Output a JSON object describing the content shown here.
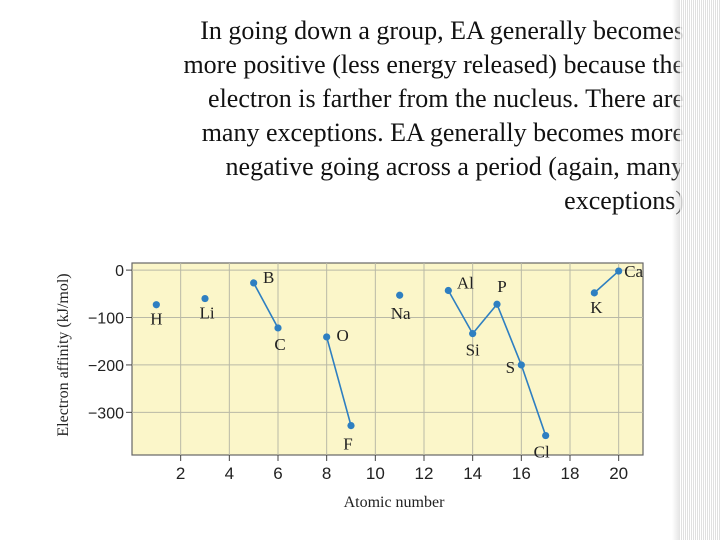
{
  "slide": {
    "text_lines": [
      "In going down a group, EA generally becomes",
      "more positive (less energy released) because the",
      "electron is farther from the nucleus.  There are",
      "many exceptions.  EA generally becomes more",
      "negative going across a period (again, many",
      "exceptions)"
    ]
  },
  "chart_data": {
    "type": "scatter",
    "xlabel": "Atomic number",
    "ylabel": "Electron affinity (kJ/mol)",
    "xlim": [
      0,
      21
    ],
    "ylim": [
      -390,
      15
    ],
    "x_ticks": [
      2,
      4,
      6,
      8,
      10,
      12,
      14,
      16,
      18,
      20
    ],
    "y_ticks": [
      0,
      -100,
      -200,
      -300
    ],
    "y_tick_labels": [
      "0",
      "−100",
      "−200",
      "−300"
    ],
    "grid": true,
    "plot_background": "#fbf6c9",
    "point_color": "#2e7fc1",
    "line_color": "#2e7fc1",
    "points": [
      {
        "z": 1,
        "symbol": "H",
        "ea": -73
      },
      {
        "z": 3,
        "symbol": "Li",
        "ea": -60
      },
      {
        "z": 5,
        "symbol": "B",
        "ea": -27
      },
      {
        "z": 6,
        "symbol": "C",
        "ea": -122
      },
      {
        "z": 8,
        "symbol": "O",
        "ea": -141
      },
      {
        "z": 9,
        "symbol": "F",
        "ea": -328
      },
      {
        "z": 11,
        "symbol": "Na",
        "ea": -53
      },
      {
        "z": 13,
        "symbol": "Al",
        "ea": -43
      },
      {
        "z": 14,
        "symbol": "Si",
        "ea": -134
      },
      {
        "z": 15,
        "symbol": "P",
        "ea": -72
      },
      {
        "z": 16,
        "symbol": "S",
        "ea": -200
      },
      {
        "z": 17,
        "symbol": "Cl",
        "ea": -349
      },
      {
        "z": 19,
        "symbol": "K",
        "ea": -48
      },
      {
        "z": 20,
        "symbol": "Ca",
        "ea": -2
      }
    ],
    "segments": [
      [
        5,
        6
      ],
      [
        8,
        9
      ],
      [
        13,
        14
      ],
      [
        14,
        15
      ],
      [
        15,
        16
      ],
      [
        16,
        17
      ],
      [
        19,
        20
      ]
    ]
  }
}
